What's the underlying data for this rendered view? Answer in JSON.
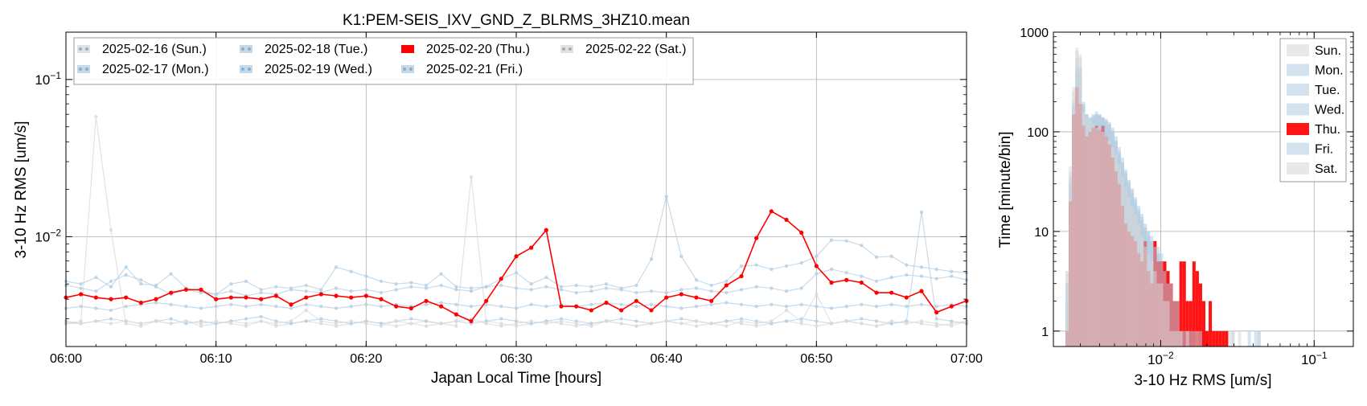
{
  "chart_data": [
    {
      "type": "line",
      "title": "K1:PEM-SEIS_IXV_GND_Z_BLRMS_3HZ10.mean",
      "xlabel": "Japan Local Time [hours]",
      "ylabel": "3-10 Hz RMS [um/s]",
      "yscale": "log",
      "xlim": [
        0,
        60
      ],
      "ylim": [
        0.002,
        0.2
      ],
      "grid": true,
      "legend_position": "top-left",
      "x_ticks": [
        "06:00",
        "06:10",
        "06:20",
        "06:30",
        "06:40",
        "06:50",
        "07:00"
      ],
      "y_ticks": [
        {
          "value": 0.1,
          "label": "10^-1"
        },
        {
          "value": 0.01,
          "label": "10^-2"
        }
      ],
      "highlight_color": "#ff0000",
      "series": [
        {
          "name": "2025-02-16 (Sun.)",
          "color": "#d9d9d9",
          "values": [
            0.0028,
            0.0029,
            0.058,
            0.011,
            0.0028,
            0.0027,
            0.0029,
            0.0028,
            0.0029,
            0.0027,
            0.0028,
            0.0029,
            0.0028,
            0.0029,
            0.0027,
            0.0028,
            0.0029,
            0.0028,
            0.0027,
            0.0028,
            0.0029,
            0.0028,
            0.0027,
            0.0028,
            0.0029,
            0.0028,
            0.0027,
            0.024,
            0.0029,
            0.0028,
            0.0027,
            0.0028,
            0.0029,
            0.0028,
            0.0027,
            0.0028,
            0.0029,
            0.0028,
            0.0027,
            0.0028,
            0.0029,
            0.0028,
            0.0027,
            0.0028,
            0.0029,
            0.0028,
            0.0027,
            0.0028,
            0.0029,
            0.0028,
            0.0027,
            0.0028,
            0.0029,
            0.0028,
            0.0027,
            0.0028,
            0.0029,
            0.0028,
            0.0027,
            0.0028,
            0.0029
          ]
        },
        {
          "name": "2025-02-17 (Mon.)",
          "color": "#b5cfe3",
          "values": [
            0.0035,
            0.0036,
            0.0035,
            0.0034,
            0.0036,
            0.0037,
            0.0038,
            0.0037,
            0.0036,
            0.0035,
            0.0036,
            0.0037,
            0.0036,
            0.0037,
            0.0036,
            0.0035,
            0.0037,
            0.0036,
            0.0035,
            0.0036,
            0.0037,
            0.0036,
            0.0037,
            0.0036,
            0.0037,
            0.0038,
            0.0037,
            0.0036,
            0.0037,
            0.0036,
            0.0035,
            0.0037,
            0.0036,
            0.0037,
            0.0036,
            0.0037,
            0.0038,
            0.0037,
            0.0036,
            0.0037,
            0.0036,
            0.0035,
            0.0036,
            0.0037,
            0.0038,
            0.0037,
            0.0036,
            0.0037,
            0.0036,
            0.0037,
            0.0036,
            0.0035,
            0.0036,
            0.0037,
            0.0036,
            0.0037,
            0.0036,
            0.0037,
            0.0036,
            0.0037,
            0.0036
          ]
        },
        {
          "name": "2025-02-18 (Tue.)",
          "color": "#b5cfe3",
          "values": [
            0.0052,
            0.005,
            0.0055,
            0.0048,
            0.0064,
            0.005,
            0.0049,
            0.0058,
            0.0047,
            0.0045,
            0.0043,
            0.005,
            0.0052,
            0.0046,
            0.0048,
            0.0047,
            0.0049,
            0.0046,
            0.0064,
            0.006,
            0.0056,
            0.0052,
            0.005,
            0.0051,
            0.0049,
            0.0058,
            0.0048,
            0.0047,
            0.0048,
            0.0054,
            0.0059,
            0.005,
            0.0055,
            0.0048,
            0.0049,
            0.0048,
            0.005,
            0.0047,
            0.0049,
            0.0072,
            0.018,
            0.0075,
            0.0053,
            0.0049,
            0.0052,
            0.0065,
            0.0066,
            0.0062,
            0.0065,
            0.0068,
            0.0075,
            0.0095,
            0.0094,
            0.0088,
            0.0074,
            0.0075,
            0.0066,
            0.0064,
            0.0062,
            0.006,
            0.0059
          ]
        },
        {
          "name": "2025-02-19 (Wed.)",
          "color": "#b5cfe3",
          "values": [
            0.0049,
            0.0047,
            0.0045,
            0.0052,
            0.0057,
            0.0053,
            0.0048,
            0.0043,
            0.0046,
            0.0044,
            0.0043,
            0.0045,
            0.0042,
            0.0044,
            0.0043,
            0.0046,
            0.0045,
            0.0044,
            0.0047,
            0.0045,
            0.0046,
            0.0044,
            0.0046,
            0.0048,
            0.0047,
            0.0049,
            0.0046,
            0.0045,
            0.0048,
            0.0049,
            0.0047,
            0.0046,
            0.0048,
            0.0046,
            0.0044,
            0.0045,
            0.0047,
            0.0046,
            0.0044,
            0.0045,
            0.0044,
            0.0046,
            0.0047,
            0.0045,
            0.0044,
            0.0046,
            0.0048,
            0.0047,
            0.0045,
            0.0047,
            0.0058,
            0.0062,
            0.0059,
            0.0056,
            0.0052,
            0.0055,
            0.0057,
            0.0056,
            0.0054,
            0.0056,
            0.0053
          ]
        },
        {
          "name": "2025-02-20 (Thu.)",
          "color": "#ff0000",
          "values": [
            0.0041,
            0.0043,
            0.0041,
            0.004,
            0.0041,
            0.0038,
            0.004,
            0.0044,
            0.0046,
            0.0046,
            0.004,
            0.0041,
            0.0041,
            0.004,
            0.0042,
            0.0037,
            0.0041,
            0.0043,
            0.0042,
            0.0041,
            0.0042,
            0.004,
            0.0036,
            0.0035,
            0.0039,
            0.0036,
            0.0032,
            0.0029,
            0.0039,
            0.0054,
            0.0075,
            0.0085,
            0.011,
            0.0036,
            0.0036,
            0.0034,
            0.0038,
            0.0034,
            0.0039,
            0.0034,
            0.0041,
            0.0043,
            0.0041,
            0.0039,
            0.0049,
            0.0056,
            0.0098,
            0.0145,
            0.0128,
            0.0106,
            0.0065,
            0.0051,
            0.0053,
            0.0051,
            0.0044,
            0.0044,
            0.0041,
            0.0045,
            0.0033,
            0.0036,
            0.0039
          ]
        },
        {
          "name": "2025-02-21 (Fri.)",
          "color": "#b5cfe3",
          "values": [
            0.0029,
            0.0028,
            0.0029,
            0.003,
            0.0029,
            0.0028,
            0.0029,
            0.003,
            0.0028,
            0.0029,
            0.0028,
            0.0029,
            0.003,
            0.0031,
            0.0029,
            0.0028,
            0.0029,
            0.003,
            0.0029,
            0.0028,
            0.0029,
            0.0028,
            0.0029,
            0.003,
            0.0029,
            0.0028,
            0.0029,
            0.0028,
            0.0029,
            0.003,
            0.0029,
            0.0028,
            0.0029,
            0.003,
            0.0029,
            0.0028,
            0.0029,
            0.003,
            0.0029,
            0.0028,
            0.0029,
            0.003,
            0.0029,
            0.0028,
            0.0029,
            0.003,
            0.0029,
            0.0028,
            0.0029,
            0.003,
            0.0029,
            0.0028,
            0.0029,
            0.003,
            0.0029,
            0.0028,
            0.0029,
            0.0143,
            0.003,
            0.0029,
            0.0028
          ]
        },
        {
          "name": "2025-02-22 (Sat.)",
          "color": "#d9d9d9",
          "values": [
            0.0028,
            0.0028,
            0.0029,
            0.0028,
            0.0029,
            0.0028,
            0.0029,
            0.0028,
            0.0029,
            0.0028,
            0.0029,
            0.0028,
            0.0027,
            0.0029,
            0.0028,
            0.0029,
            0.0034,
            0.0029,
            0.0028,
            0.0029,
            0.0028,
            0.0027,
            0.0029,
            0.0028,
            0.0027,
            0.0028,
            0.0029,
            0.003,
            0.0028,
            0.0027,
            0.0028,
            0.0029,
            0.0028,
            0.0029,
            0.0028,
            0.0027,
            0.0029,
            0.0028,
            0.0027,
            0.0028,
            0.0029,
            0.0028,
            0.0029,
            0.0028,
            0.0027,
            0.0029,
            0.0028,
            0.0029,
            0.0034,
            0.0029,
            0.0043,
            0.0028,
            0.0029,
            0.0028,
            0.0027,
            0.0029,
            0.0028,
            0.0029,
            0.0028,
            0.0027,
            0.0029
          ]
        }
      ]
    },
    {
      "type": "bar",
      "subtype": "histogram",
      "xlabel": "3-10 Hz RMS [um/s]",
      "ylabel": "Time [minute/bin]",
      "xscale": "log",
      "yscale": "log",
      "xlim": [
        0.002,
        0.18
      ],
      "ylim": [
        0.7,
        1000
      ],
      "grid": true,
      "legend_position": "top-right",
      "x_ticks": [
        {
          "value": 0.01,
          "label": "10^-2"
        },
        {
          "value": 0.1,
          "label": "10^-1"
        }
      ],
      "y_ticks": [
        {
          "value": 1,
          "label": "1"
        },
        {
          "value": 10,
          "label": "10"
        },
        {
          "value": 100,
          "label": "100"
        },
        {
          "value": 1000,
          "label": "1000"
        }
      ],
      "series": [
        {
          "name": "Sun.",
          "color": "#d9d9d9",
          "bins_from": 0.0024,
          "bin_ratio": 1.05,
          "counts": [
            4,
            40,
            250,
            700,
            600,
            170,
            150,
            140,
            130,
            120,
            115,
            110,
            100,
            90,
            80,
            70,
            55,
            40,
            30,
            24,
            20,
            16,
            13,
            10,
            8,
            6,
            5,
            4,
            3,
            3,
            2,
            2,
            1,
            1,
            1,
            1,
            1,
            0,
            1,
            0,
            0,
            1,
            0,
            0,
            0,
            0,
            0,
            0,
            0,
            0,
            1,
            0,
            0,
            1,
            0,
            0,
            0,
            0,
            0,
            1
          ]
        },
        {
          "name": "Mon.",
          "color": "#b5cfe3",
          "bins_from": 0.0024,
          "bin_ratio": 1.05,
          "counts": [
            3,
            35,
            200,
            550,
            450,
            200,
            150,
            130,
            140,
            145,
            150,
            140,
            130,
            120,
            100,
            80,
            60,
            45,
            35,
            28,
            22,
            18,
            15,
            12,
            10,
            9,
            8,
            7,
            6,
            5,
            4,
            3,
            2,
            2,
            1,
            1,
            1,
            1,
            0,
            1,
            0,
            0,
            0,
            1,
            0,
            0,
            0,
            0,
            0,
            1,
            0,
            0,
            0,
            0,
            0,
            0,
            0,
            0,
            0,
            0
          ]
        },
        {
          "name": "Tue.",
          "color": "#b5cfe3",
          "bins_from": 0.0024,
          "bin_ratio": 1.05,
          "counts": [
            2,
            30,
            180,
            400,
            380,
            190,
            150,
            140,
            150,
            160,
            150,
            140,
            135,
            125,
            110,
            90,
            70,
            55,
            42,
            33,
            27,
            22,
            18,
            15,
            12,
            10,
            9,
            8,
            7,
            6,
            5,
            4,
            3,
            2,
            2,
            1,
            1,
            1,
            1,
            0,
            1,
            0,
            0,
            0,
            0,
            0,
            0,
            0,
            0,
            0,
            0,
            1,
            0,
            0,
            0,
            0,
            0,
            0,
            1,
            0
          ]
        },
        {
          "name": "Wed.",
          "color": "#b5cfe3",
          "bins_from": 0.0024,
          "bin_ratio": 1.05,
          "counts": [
            2,
            25,
            170,
            380,
            350,
            180,
            140,
            135,
            145,
            150,
            145,
            135,
            125,
            115,
            100,
            80,
            62,
            48,
            38,
            30,
            24,
            20,
            16,
            13,
            11,
            9,
            8,
            7,
            6,
            5,
            4,
            3,
            2,
            2,
            1,
            1,
            1,
            0,
            1,
            0,
            0,
            0,
            1,
            0,
            0,
            0,
            0,
            0,
            0,
            0,
            0,
            0,
            0,
            0,
            0,
            0,
            0,
            0,
            0,
            0
          ]
        },
        {
          "name": "Thu.",
          "color": "#ff0000",
          "bins_from": 0.0024,
          "bin_ratio": 1.05,
          "counts": [
            1,
            20,
            150,
            280,
            190,
            115,
            90,
            100,
            110,
            115,
            105,
            115,
            90,
            75,
            55,
            40,
            30,
            18,
            12,
            10,
            9,
            8,
            6,
            5,
            8,
            4,
            3,
            8,
            5,
            5,
            5,
            4,
            3,
            2,
            2,
            5,
            5,
            2,
            2,
            5,
            4,
            3,
            2,
            1,
            2,
            1,
            1,
            1,
            1,
            1,
            0,
            0,
            0,
            0,
            0,
            0,
            0,
            0,
            0,
            0
          ]
        },
        {
          "name": "Fri.",
          "color": "#b5cfe3",
          "bins_from": 0.0024,
          "bin_ratio": 1.05,
          "counts": [
            3,
            30,
            190,
            450,
            420,
            190,
            145,
            130,
            140,
            150,
            145,
            138,
            128,
            118,
            102,
            82,
            64,
            50,
            40,
            32,
            26,
            21,
            17,
            14,
            11,
            10,
            8,
            7,
            6,
            5,
            4,
            3,
            3,
            2,
            2,
            1,
            1,
            1,
            1,
            1,
            0,
            1,
            0,
            0,
            0,
            0,
            0,
            0,
            0,
            0,
            0,
            0,
            0,
            0,
            0,
            0,
            1,
            0,
            0,
            1
          ]
        },
        {
          "name": "Sat.",
          "color": "#d9d9d9",
          "bins_from": 0.0024,
          "bin_ratio": 1.05,
          "counts": [
            4,
            45,
            280,
            650,
            550,
            160,
            140,
            130,
            120,
            110,
            105,
            100,
            90,
            80,
            70,
            60,
            48,
            36,
            28,
            22,
            18,
            15,
            12,
            9,
            7,
            6,
            5,
            4,
            3,
            3,
            2,
            2,
            1,
            1,
            1,
            1,
            0,
            1,
            0,
            0,
            1,
            0,
            0,
            0,
            0,
            0,
            0,
            0,
            0,
            0,
            0,
            1,
            0,
            0,
            0,
            0,
            0,
            0,
            0,
            0
          ]
        }
      ]
    }
  ]
}
